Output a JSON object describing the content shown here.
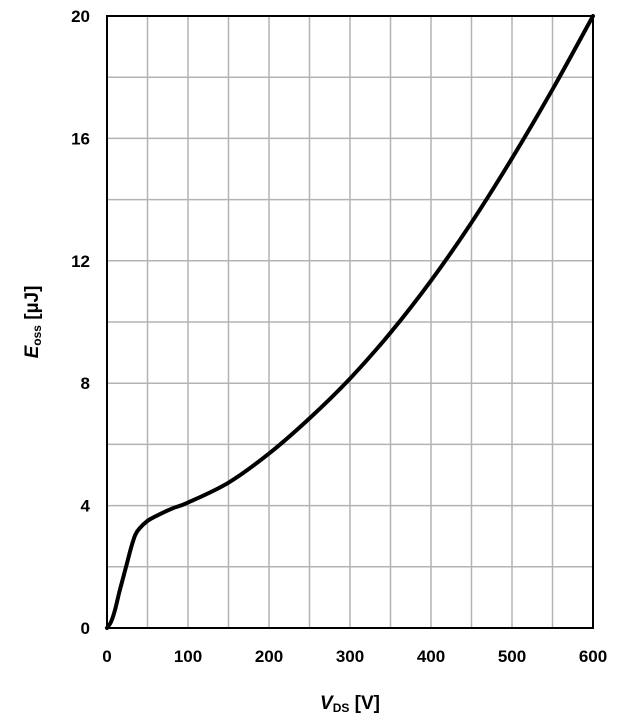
{
  "chart_data": {
    "type": "line",
    "x_axis": {
      "label_main": "V",
      "label_sub": "DS",
      "label_unit": " [V]",
      "range": [
        0,
        600
      ],
      "ticks": [
        0,
        100,
        200,
        300,
        400,
        500,
        600
      ],
      "tick_labels": [
        "0",
        "100",
        "200",
        "300",
        "400",
        "500",
        "600"
      ],
      "minor_step": 50
    },
    "y_axis": {
      "label_main": "E",
      "label_sub": "oss",
      "label_unit": " [µJ]",
      "range": [
        0,
        20
      ],
      "ticks": [
        0,
        4,
        8,
        12,
        16,
        20
      ],
      "tick_labels": [
        "0",
        "4",
        "8",
        "12",
        "16",
        "20"
      ],
      "minor_step": 2
    },
    "grid": true,
    "series": [
      {
        "color": "#000000",
        "points": [
          [
            0,
            0
          ],
          [
            5,
            0.2
          ],
          [
            10,
            0.6
          ],
          [
            15,
            1.15
          ],
          [
            20,
            1.65
          ],
          [
            25,
            2.15
          ],
          [
            30,
            2.65
          ],
          [
            35,
            3.05
          ],
          [
            40,
            3.25
          ],
          [
            50,
            3.5
          ],
          [
            60,
            3.65
          ],
          [
            80,
            3.9
          ],
          [
            100,
            4.1
          ],
          [
            150,
            4.75
          ],
          [
            200,
            5.7
          ],
          [
            250,
            6.85
          ],
          [
            300,
            8.15
          ],
          [
            350,
            9.65
          ],
          [
            400,
            11.35
          ],
          [
            450,
            13.25
          ],
          [
            500,
            15.35
          ],
          [
            550,
            17.6
          ],
          [
            600,
            20.0
          ]
        ]
      }
    ]
  },
  "watermark": {
    "color": "#e8333a"
  }
}
